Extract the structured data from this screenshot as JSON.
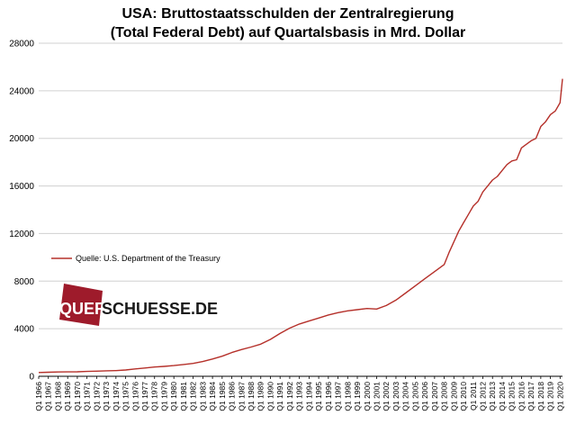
{
  "chart_data": {
    "type": "line",
    "title": "USA: Bruttostaatsschulden der Zentralregierung",
    "subtitle": "(Total Federal Debt) auf Quartalsbasis in Mrd. Dollar",
    "xlabel": "",
    "ylabel": "",
    "ylim": [
      0,
      28000
    ],
    "yticks": [
      "0",
      "4000",
      "8000",
      "12000",
      "16000",
      "20000",
      "24000",
      "28000"
    ],
    "x_tick_labels": [
      "Q1 1966",
      "Q1 1967",
      "Q1 1968",
      "Q1 1969",
      "Q1 1970",
      "Q1 1971",
      "Q1 1972",
      "Q1 1973",
      "Q1 1974",
      "Q1 1975",
      "Q1 1976",
      "Q1 1977",
      "Q1 1978",
      "Q1 1979",
      "Q1 1980",
      "Q1 1981",
      "Q1 1982",
      "Q1 1983",
      "Q1 1984",
      "Q1 1985",
      "Q1 1986",
      "Q1 1987",
      "Q1 1988",
      "Q1 1989",
      "Q1 1990",
      "Q1 1991",
      "Q1 1992",
      "Q1 1993",
      "Q1 1994",
      "Q1 1995",
      "Q1 1996",
      "Q1 1997",
      "Q1 1998",
      "Q1 1999",
      "Q1 2000",
      "Q1 2001",
      "Q1 2002",
      "Q1 2003",
      "Q1 2004",
      "Q1 2005",
      "Q1 2006",
      "Q1 2007",
      "Q1 2008",
      "Q1 2009",
      "Q1 2010",
      "Q1 2011",
      "Q1 2012",
      "Q1 2013",
      "Q1 2014",
      "Q1 2015",
      "Q1 2016",
      "Q1 2017",
      "Q1 2018",
      "Q1 2019",
      "Q1 2020"
    ],
    "x": [
      1966.0,
      1967.0,
      1968.0,
      1969.0,
      1970.0,
      1971.0,
      1972.0,
      1973.0,
      1974.0,
      1975.0,
      1976.0,
      1977.0,
      1978.0,
      1979.0,
      1980.0,
      1981.0,
      1982.0,
      1983.0,
      1984.0,
      1985.0,
      1986.0,
      1987.0,
      1988.0,
      1989.0,
      1990.0,
      1991.0,
      1992.0,
      1993.0,
      1994.0,
      1995.0,
      1996.0,
      1997.0,
      1998.0,
      1999.0,
      2000.0,
      2001.0,
      2002.0,
      2003.0,
      2004.0,
      2005.0,
      2006.0,
      2007.0,
      2008.0,
      2008.5,
      2009.0,
      2009.5,
      2010.0,
      2010.5,
      2011.0,
      2011.5,
      2012.0,
      2012.5,
      2013.0,
      2013.5,
      2014.0,
      2014.5,
      2015.0,
      2015.5,
      2016.0,
      2016.5,
      2017.0,
      2017.5,
      2018.0,
      2018.5,
      2019.0,
      2019.5,
      2020.0,
      2020.25
    ],
    "series": [
      {
        "name": "Quelle:  U.S. Department of the Treasury",
        "values": [
          320,
          340,
          360,
          370,
          380,
          410,
          430,
          460,
          480,
          530,
          620,
          700,
          780,
          830,
          900,
          990,
          1080,
          1240,
          1450,
          1690,
          2000,
          2250,
          2460,
          2700,
          3100,
          3600,
          4050,
          4400,
          4650,
          4900,
          5150,
          5350,
          5500,
          5600,
          5700,
          5650,
          5950,
          6400,
          7000,
          7600,
          8200,
          8800,
          9400,
          10400,
          11300,
          12200,
          12900,
          13600,
          14300,
          14700,
          15500,
          16000,
          16500,
          16800,
          17300,
          17800,
          18100,
          18200,
          19200,
          19500,
          19800,
          20000,
          21000,
          21400,
          22000,
          22300,
          23000,
          25000
        ]
      }
    ],
    "colors": {
      "line": "#b5302a",
      "grid": "#d0d0d0",
      "axis": "#000000",
      "logo_box": "#9e1b2b"
    },
    "grid": true,
    "legend_position": "left-middle",
    "watermark": {
      "text_part1": "QUER",
      "text_part2": "SCHUESSE.DE"
    }
  }
}
